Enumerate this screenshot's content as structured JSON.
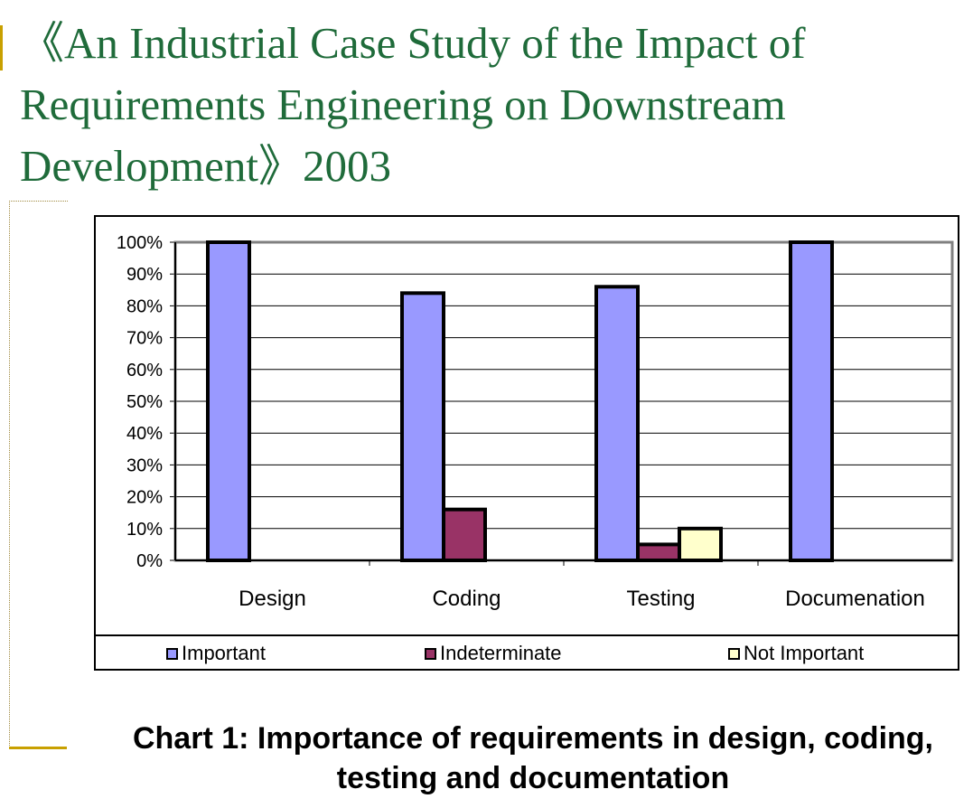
{
  "slide": {
    "title": "《An Industrial Case Study of the Impact of Requirements Engineering on Downstream Development》2003",
    "caption": "Chart 1: Importance of requirements in design, coding, testing and documentation"
  },
  "chart_data": {
    "type": "bar",
    "categories": [
      "Design",
      "Coding",
      "Testing",
      "Documenation"
    ],
    "series": [
      {
        "name": "Important",
        "values": [
          100,
          84,
          86,
          100
        ],
        "color": "#9999ff"
      },
      {
        "name": "Indeterminate",
        "values": [
          0,
          16,
          5,
          0
        ],
        "color": "#993366"
      },
      {
        "name": "Not Important",
        "values": [
          0,
          0,
          10,
          0
        ],
        "color": "#ffffcc"
      }
    ],
    "ylim": [
      0,
      100
    ],
    "yticks": [
      "0%",
      "10%",
      "20%",
      "30%",
      "40%",
      "50%",
      "60%",
      "70%",
      "80%",
      "90%",
      "100%"
    ],
    "grid": true,
    "legend_position": "bottom",
    "plot_background": "#ffffff",
    "plot_border": "#808080"
  }
}
